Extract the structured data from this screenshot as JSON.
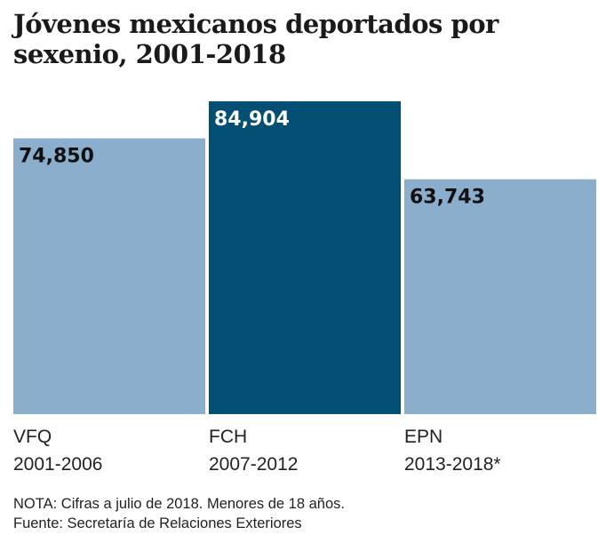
{
  "chart_data": {
    "type": "bar",
    "title": "Jóvenes mexicanos deportados por sexenio, 2001-2018",
    "categories": [
      {
        "name": "VFQ",
        "period": "2001-2006"
      },
      {
        "name": "FCH",
        "period": "2007-2012"
      },
      {
        "name": "EPN",
        "period": "2013-2018*"
      }
    ],
    "values": [
      74850,
      84904,
      63743
    ],
    "value_labels": [
      "74,850",
      "84,904",
      "63,743"
    ],
    "colors": [
      "#8aaecb",
      "#034f73",
      "#8aaecb"
    ],
    "label_colors": [
      "#111111",
      "#ffffff",
      "#111111"
    ],
    "ylim": [
      0,
      84904
    ],
    "grid": false,
    "xlabel": "",
    "ylabel": ""
  },
  "notes": {
    "nota": "NOTA: Cifras a julio de 2018. Menores de 18 años.",
    "fuente": "Fuente: Secretaría de Relaciones Exteriores"
  }
}
